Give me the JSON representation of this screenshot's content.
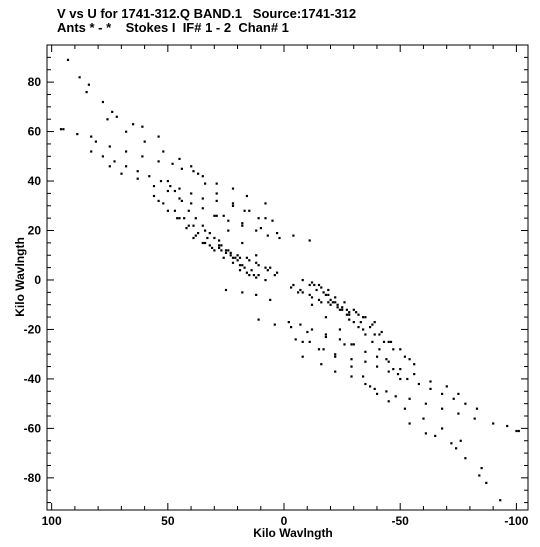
{
  "header": {
    "title_line1": "V vs U for 1741-312.Q BAND.1   Source:1741-312",
    "title_line2": "Ants * - *    Stokes I  IF# 1 - 2  Chan# 1"
  },
  "chart_data": {
    "type": "scatter",
    "xlabel": "Kilo Wavlngth",
    "ylabel": "Kilo Wavlngth",
    "xlim": [
      102,
      -105
    ],
    "ylim": [
      -93,
      95
    ],
    "x_ticks": [
      100,
      50,
      0,
      -50,
      -100
    ],
    "y_ticks": [
      80,
      60,
      40,
      20,
      0,
      -20,
      -40,
      -60,
      -80
    ],
    "x_tick_labels": [
      "100",
      "50",
      "0",
      "-50",
      "-100"
    ],
    "y_tick_labels": [
      "80",
      "60",
      "40",
      "20",
      "0",
      "-20",
      "-40",
      "-60",
      "-80"
    ],
    "grid": false,
    "marker_color": "#000000",
    "series": [
      {
        "points": [
          [
            93,
            89
          ],
          [
            88,
            82
          ],
          [
            84,
            79
          ],
          [
            85,
            76
          ],
          [
            78,
            72
          ],
          [
            74,
            68
          ],
          [
            72,
            66
          ],
          [
            65,
            63
          ],
          [
            61,
            62
          ],
          [
            54,
            58
          ],
          [
            76,
            65
          ],
          [
            68,
            60
          ],
          [
            60,
            56
          ],
          [
            52,
            52
          ],
          [
            45,
            49
          ],
          [
            40,
            46
          ],
          [
            37,
            43
          ],
          [
            34,
            39
          ],
          [
            29,
            35
          ],
          [
            22,
            31
          ],
          [
            15,
            28
          ],
          [
            8,
            25
          ],
          [
            95,
            61
          ],
          [
            96,
            61
          ],
          [
            89,
            59
          ],
          [
            83,
            58
          ],
          [
            81,
            56
          ],
          [
            75,
            54
          ],
          [
            68,
            52
          ],
          [
            61,
            50
          ],
          [
            54,
            48
          ],
          [
            48,
            47
          ],
          [
            44,
            45
          ],
          [
            39,
            44
          ],
          [
            35,
            42
          ],
          [
            29,
            39
          ],
          [
            22,
            37
          ],
          [
            16,
            34
          ],
          [
            8,
            31
          ],
          [
            83,
            52
          ],
          [
            78,
            50
          ],
          [
            73,
            48
          ],
          [
            68,
            46
          ],
          [
            63,
            44
          ],
          [
            58,
            42
          ],
          [
            53,
            40
          ],
          [
            49,
            38
          ],
          [
            45,
            37
          ],
          [
            40,
            35
          ],
          [
            35,
            33
          ],
          [
            29,
            32
          ],
          [
            22,
            30
          ],
          [
            17,
            28
          ],
          [
            11,
            25
          ],
          [
            5,
            24
          ],
          [
            75,
            46
          ],
          [
            70,
            43
          ],
          [
            63,
            41
          ],
          [
            56,
            38
          ],
          [
            50,
            36
          ],
          [
            45,
            33
          ],
          [
            40,
            31
          ],
          [
            35,
            29
          ],
          [
            29,
            26
          ],
          [
            24,
            24
          ],
          [
            18,
            22
          ],
          [
            12,
            20
          ],
          [
            7,
            18
          ],
          [
            2,
            17
          ],
          [
            50,
            40
          ],
          [
            47,
            36
          ],
          [
            44,
            32
          ],
          [
            41,
            28
          ],
          [
            38,
            25
          ],
          [
            35,
            22
          ],
          [
            32,
            19
          ],
          [
            28,
            16
          ],
          [
            25,
            12
          ],
          [
            22,
            9
          ],
          [
            19,
            6
          ],
          [
            16,
            3
          ],
          [
            56,
            34
          ],
          [
            52,
            31
          ],
          [
            47,
            28
          ],
          [
            43,
            25
          ],
          [
            39,
            22
          ],
          [
            34,
            20
          ],
          [
            30,
            17
          ],
          [
            27,
            14
          ],
          [
            23,
            11
          ],
          [
            20,
            8
          ],
          [
            17,
            5
          ],
          [
            13,
            2
          ],
          [
            45,
            25
          ],
          [
            41,
            22
          ],
          [
            37,
            19
          ],
          [
            33,
            17
          ],
          [
            28,
            14
          ],
          [
            25,
            11
          ],
          [
            21,
            9
          ],
          [
            18,
            6
          ],
          [
            14,
            4
          ],
          [
            11,
            2
          ],
          [
            8,
            0
          ],
          [
            54,
            32
          ],
          [
            50,
            28
          ],
          [
            46,
            25
          ],
          [
            42,
            21
          ],
          [
            38,
            18
          ],
          [
            34,
            15
          ],
          [
            30,
            12
          ],
          [
            26,
            9
          ],
          [
            22,
            7
          ],
          [
            19,
            4
          ],
          [
            15,
            2
          ],
          [
            12,
            1
          ],
          [
            39,
            17
          ],
          [
            35,
            15
          ],
          [
            31,
            13
          ],
          [
            27,
            12
          ],
          [
            23,
            10
          ],
          [
            19,
            9
          ],
          [
            15,
            8
          ],
          [
            11,
            6
          ],
          [
            7,
            4
          ],
          [
            4,
            2
          ],
          [
            32,
            14
          ],
          [
            28,
            13
          ],
          [
            24,
            12
          ],
          [
            20,
            10
          ],
          [
            16,
            9
          ],
          [
            12,
            7
          ],
          [
            8,
            5
          ],
          [
            26,
            26
          ],
          [
            18,
            23
          ],
          [
            10,
            21
          ],
          [
            3,
            19
          ],
          [
            -4,
            18
          ],
          [
            -11,
            16
          ],
          [
            30,
            26
          ],
          [
            24,
            20
          ],
          [
            18,
            15
          ],
          [
            12,
            10
          ],
          [
            6,
            5
          ],
          [
            3,
            3
          ],
          [
            -93,
            -89
          ],
          [
            -87,
            -82
          ],
          [
            -84,
            -79
          ],
          [
            -85,
            -76
          ],
          [
            -78,
            -72
          ],
          [
            -74,
            -68
          ],
          [
            -72,
            -66
          ],
          [
            -65,
            -63
          ],
          [
            -61,
            -62
          ],
          [
            -54,
            -58
          ],
          [
            -76,
            -65
          ],
          [
            -68,
            -60
          ],
          [
            -60,
            -56
          ],
          [
            -52,
            -52
          ],
          [
            -45,
            -49
          ],
          [
            -40,
            -46
          ],
          [
            -37,
            -43
          ],
          [
            -34,
            -39
          ],
          [
            -29,
            -35
          ],
          [
            -22,
            -31
          ],
          [
            -15,
            -28
          ],
          [
            -8,
            -25
          ],
          [
            -101,
            -61
          ],
          [
            -100,
            -61
          ],
          [
            -96,
            -59
          ],
          [
            -90,
            -58
          ],
          [
            -82,
            -56
          ],
          [
            -75,
            -54
          ],
          [
            -68,
            -52
          ],
          [
            -61,
            -50
          ],
          [
            -54,
            -48
          ],
          [
            -48,
            -47
          ],
          [
            -44,
            -45
          ],
          [
            -39,
            -44
          ],
          [
            -35,
            -42
          ],
          [
            -29,
            -39
          ],
          [
            -22,
            -37
          ],
          [
            -16,
            -34
          ],
          [
            -8,
            -31
          ],
          [
            -83,
            -52
          ],
          [
            -78,
            -50
          ],
          [
            -73,
            -48
          ],
          [
            -68,
            -46
          ],
          [
            -63,
            -44
          ],
          [
            -58,
            -42
          ],
          [
            -53,
            -40
          ],
          [
            -49,
            -38
          ],
          [
            -45,
            -37
          ],
          [
            -40,
            -35
          ],
          [
            -35,
            -33
          ],
          [
            -29,
            -32
          ],
          [
            -22,
            -30
          ],
          [
            -17,
            -28
          ],
          [
            -11,
            -25
          ],
          [
            -5,
            -24
          ],
          [
            -75,
            -46
          ],
          [
            -70,
            -43
          ],
          [
            -63,
            -41
          ],
          [
            -56,
            -38
          ],
          [
            -50,
            -36
          ],
          [
            -45,
            -33
          ],
          [
            -40,
            -31
          ],
          [
            -35,
            -29
          ],
          [
            -29,
            -26
          ],
          [
            -24,
            -24
          ],
          [
            -18,
            -22
          ],
          [
            -12,
            -20
          ],
          [
            -7,
            -18
          ],
          [
            -2,
            -17
          ],
          [
            -50,
            -40
          ],
          [
            -47,
            -36
          ],
          [
            -44,
            -32
          ],
          [
            -41,
            -28
          ],
          [
            -38,
            -25
          ],
          [
            -35,
            -22
          ],
          [
            -32,
            -19
          ],
          [
            -28,
            -16
          ],
          [
            -25,
            -12
          ],
          [
            -22,
            -9
          ],
          [
            -19,
            -6
          ],
          [
            -16,
            -3
          ],
          [
            -56,
            -34
          ],
          [
            -52,
            -31
          ],
          [
            -47,
            -28
          ],
          [
            -43,
            -25
          ],
          [
            -39,
            -22
          ],
          [
            -34,
            -20
          ],
          [
            -30,
            -17
          ],
          [
            -27,
            -14
          ],
          [
            -23,
            -11
          ],
          [
            -20,
            -8
          ],
          [
            -17,
            -5
          ],
          [
            -13,
            -2
          ],
          [
            -45,
            -25
          ],
          [
            -41,
            -22
          ],
          [
            -37,
            -19
          ],
          [
            -33,
            -17
          ],
          [
            -28,
            -14
          ],
          [
            -25,
            -11
          ],
          [
            -21,
            -9
          ],
          [
            -18,
            -6
          ],
          [
            -14,
            -4
          ],
          [
            -11,
            -2
          ],
          [
            -8,
            0
          ],
          [
            -54,
            -32
          ],
          [
            -50,
            -28
          ],
          [
            -46,
            -25
          ],
          [
            -42,
            -21
          ],
          [
            -38,
            -18
          ],
          [
            -34,
            -15
          ],
          [
            -30,
            -12
          ],
          [
            -26,
            -9
          ],
          [
            -22,
            -7
          ],
          [
            -19,
            -4
          ],
          [
            -15,
            -2
          ],
          [
            -12,
            -1
          ],
          [
            -39,
            -17
          ],
          [
            -35,
            -15
          ],
          [
            -31,
            -13
          ],
          [
            -27,
            -12
          ],
          [
            -23,
            -10
          ],
          [
            -19,
            -9
          ],
          [
            -15,
            -8
          ],
          [
            -11,
            -6
          ],
          [
            -7,
            -4
          ],
          [
            -4,
            -2
          ],
          [
            -32,
            -14
          ],
          [
            -28,
            -13
          ],
          [
            -24,
            -12
          ],
          [
            -20,
            -10
          ],
          [
            -16,
            -9
          ],
          [
            -12,
            -7
          ],
          [
            -8,
            -5
          ],
          [
            -26,
            -26
          ],
          [
            -18,
            -23
          ],
          [
            -10,
            -21
          ],
          [
            -3,
            -19
          ],
          [
            4,
            -18
          ],
          [
            11,
            -16
          ],
          [
            -30,
            -26
          ],
          [
            -24,
            -20
          ],
          [
            -18,
            -15
          ],
          [
            -12,
            -10
          ],
          [
            -6,
            -5
          ],
          [
            -3,
            -3
          ],
          [
            25,
            -4
          ],
          [
            18,
            -5
          ],
          [
            12,
            -6
          ],
          [
            6,
            -8
          ]
        ]
      }
    ]
  }
}
